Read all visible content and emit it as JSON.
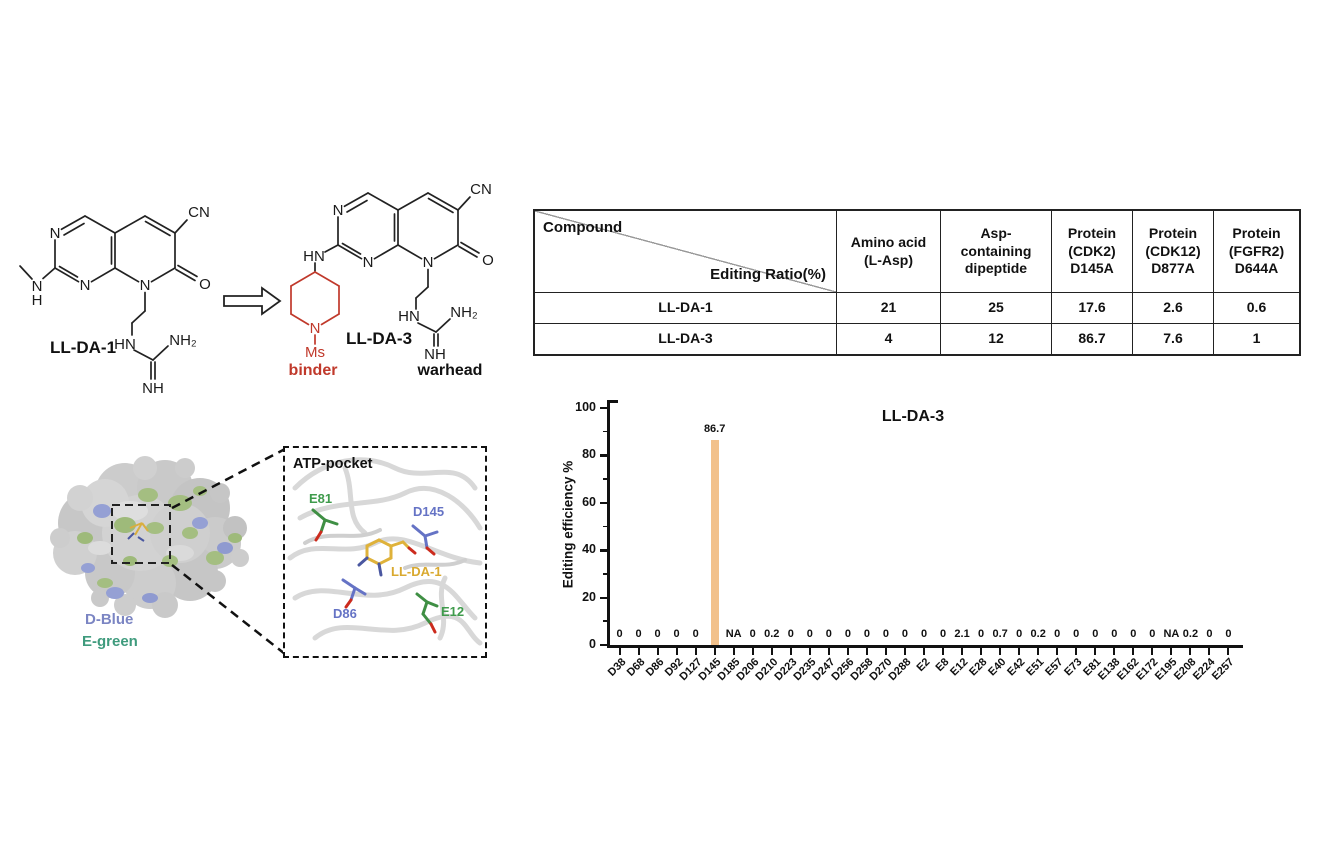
{
  "figure": {
    "molecules": {
      "m1": {
        "name": "LL-DA-1",
        "atoms": {
          "n_tl": "N",
          "n_b": "N",
          "n8": "N",
          "amine_n": "N",
          "amine_h": "H",
          "cn": "CN",
          "o": "O",
          "hn": "HN",
          "nh2": "NH₂",
          "nh": "NH"
        }
      },
      "m2": {
        "name": "LL-DA-3",
        "atoms": {
          "n_tl": "N",
          "n_b": "N",
          "n8": "N",
          "hn_link": "HN",
          "cn": "CN",
          "o": "O",
          "pip_n": "N",
          "ms": "Ms",
          "hn": "HN",
          "nh2": "NH₂",
          "nh": "NH"
        },
        "binder": "binder",
        "warhead": "warhead"
      }
    },
    "surface": {
      "d_label": "D-Blue",
      "e_label": "E-green",
      "colors": {
        "d": "#7b85c3",
        "e": "#3f9b7d",
        "grey": "#cbcbcb",
        "patch_green": "#a4be81",
        "patch_blue": "#95a0d4"
      }
    },
    "inset": {
      "title": "ATP-pocket",
      "residues": {
        "e81": "E81",
        "d145": "D145",
        "ligand": "LL-DA-1",
        "d86": "D86",
        "e12": "E12"
      },
      "colors": {
        "green": "#3f9b4c",
        "blue": "#6573c5",
        "gold": "#d9a92f",
        "red_tip": "#cc2b1d"
      }
    }
  },
  "table": {
    "corner_top_left": "Compound",
    "corner_bottom_right": "Editing Ratio(%)",
    "columns": [
      "Amino acid\n(L-Asp)",
      "Asp-\ncontaining\ndipeptide",
      "Protein\n(CDK2)\nD145A",
      "Protein\n(CDK12)\nD877A",
      "Protein\n(FGFR2)\nD644A"
    ],
    "rows": [
      {
        "compound": "LL-DA-1",
        "values": [
          "21",
          "25",
          "17.6",
          "2.6",
          "0.6"
        ]
      },
      {
        "compound": "LL-DA-3",
        "values": [
          "4",
          "12",
          "86.7",
          "7.6",
          "1"
        ]
      }
    ]
  },
  "chart_data": {
    "type": "bar",
    "title": "LL-DA-3",
    "ylabel": "Editing efficiency %",
    "ylim": [
      0,
      100
    ],
    "yticks": [
      0,
      20,
      40,
      60,
      80,
      100
    ],
    "grid": false,
    "legend": null,
    "categories": [
      "D38",
      "D68",
      "D86",
      "D92",
      "D127",
      "D145",
      "D185",
      "D206",
      "D210",
      "D223",
      "D235",
      "D247",
      "D256",
      "D258",
      "D270",
      "D288",
      "E2",
      "E8",
      "E12",
      "E28",
      "E40",
      "E42",
      "E51",
      "E57",
      "E73",
      "E81",
      "E138",
      "E162",
      "E172",
      "E195",
      "E208",
      "E224",
      "E257"
    ],
    "values": [
      0,
      0,
      0,
      0,
      0,
      86.7,
      "NA",
      0,
      0.2,
      0,
      0,
      0,
      0,
      0,
      0,
      0,
      0,
      0,
      2.1,
      0,
      0.7,
      0,
      0.2,
      0,
      0,
      0,
      0,
      0,
      0,
      "NA",
      0.2,
      0,
      0
    ],
    "bar_color": "#f2c18b",
    "max_bar_label": "86.7"
  }
}
